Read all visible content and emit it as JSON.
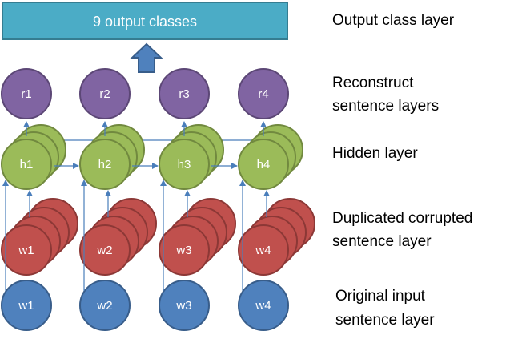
{
  "output_box": {
    "label": "9 output classes"
  },
  "layers": {
    "output": "Output class layer",
    "reconstruct_line1": "Reconstruct",
    "reconstruct_line2": "sentence layers",
    "hidden": "Hidden layer",
    "corrupted_line1": "Duplicated corrupted",
    "corrupted_line2": "sentence layer",
    "input_line1": "Original input",
    "input_line2": "sentence layer"
  },
  "nodes": {
    "reconstruct": [
      "r1",
      "r2",
      "r3",
      "r4"
    ],
    "hidden": [
      "h1",
      "h2",
      "h3",
      "h4"
    ],
    "corrupted": [
      "w1",
      "w2",
      "w3",
      "w4"
    ],
    "input": [
      "w1",
      "w2",
      "w3",
      "w4"
    ]
  },
  "colors": {
    "output_fill": "#4bacc6",
    "output_stroke": "#357d91",
    "reconstruct_fill": "#8064a2",
    "reconstruct_stroke": "#5c4776",
    "hidden_fill": "#9bbb59",
    "hidden_stroke": "#71893f",
    "corrupted_fill": "#c0504d",
    "corrupted_stroke": "#8c3836",
    "input_fill": "#4f81bd",
    "input_stroke": "#385d8a",
    "arrow": "#4a7ebb"
  }
}
